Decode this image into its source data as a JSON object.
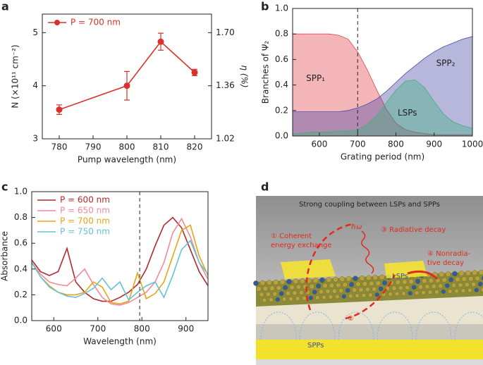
{
  "panel_labels": [
    "a",
    "b",
    "c",
    "d"
  ],
  "chart_data": [
    {
      "type": "line",
      "xlabel": "Pump wavelength (nm)",
      "ylabel": "N (×10¹¹ cm⁻²)",
      "y2label": "η (%)",
      "x": [
        780,
        800,
        810,
        820
      ],
      "series": [
        {
          "name": "P = 700 nm",
          "color": "#d9312b",
          "marker": true,
          "values": [
            3.55,
            4.0,
            4.83,
            4.25
          ],
          "errors": [
            0.09,
            0.27,
            0.16,
            0.06
          ]
        }
      ],
      "xlim": [
        775,
        825
      ],
      "xticks": [
        780,
        790,
        800,
        810,
        820
      ],
      "ylim": [
        3,
        5.35
      ],
      "yticks": [
        3,
        4,
        5
      ],
      "y2lim": [
        1.02,
        1.819
      ],
      "y2ticks": [
        1.02,
        1.36,
        {
          "value": 1.7,
          "label": "1.70"
        }
      ],
      "legend": "upper left"
    },
    {
      "type": "area",
      "xlabel": "Grating period (nm)",
      "ylabel": "Branches of Ψ₂",
      "x": [
        530,
        550,
        575,
        600,
        625,
        650,
        675,
        700,
        725,
        750,
        775,
        800,
        825,
        850,
        875,
        900,
        925,
        950,
        975,
        1000
      ],
      "series": [
        {
          "name": "SPP₁",
          "color": "#e0474c",
          "values": [
            0.8,
            0.8,
            0.8,
            0.8,
            0.8,
            0.79,
            0.76,
            0.66,
            0.52,
            0.36,
            0.21,
            0.1,
            0.05,
            0.03,
            0.02,
            0.01,
            0.01,
            0.01,
            0.01,
            0.01
          ]
        },
        {
          "name": "SPP₂",
          "color": "#4a4aa8",
          "values": [
            0.19,
            0.19,
            0.19,
            0.19,
            0.19,
            0.19,
            0.2,
            0.22,
            0.25,
            0.29,
            0.35,
            0.42,
            0.49,
            0.55,
            0.61,
            0.66,
            0.7,
            0.73,
            0.76,
            0.78
          ]
        },
        {
          "name": "LSPs",
          "color": "#3fb07e",
          "values": [
            0.02,
            0.02,
            0.03,
            0.03,
            0.03,
            0.04,
            0.04,
            0.05,
            0.09,
            0.16,
            0.26,
            0.36,
            0.43,
            0.44,
            0.38,
            0.27,
            0.17,
            0.11,
            0.08,
            0.06
          ]
        }
      ],
      "annotations": [
        {
          "text": "SPP₁",
          "x": 590,
          "y": 0.45
        },
        {
          "text": "SPP₂",
          "x": 930,
          "y": 0.57
        },
        {
          "text": "LSPs",
          "x": 830,
          "y": 0.18
        }
      ],
      "xlim": [
        530,
        1000
      ],
      "xticks": [
        600,
        700,
        800,
        900,
        1000
      ],
      "ylim": [
        0,
        1
      ],
      "yticks": [
        {
          "value": 0,
          "label": "0.0"
        },
        0.2,
        0.4,
        0.6,
        0.8,
        {
          "value": 1,
          "label": "1.0"
        }
      ],
      "vline": 700
    },
    {
      "type": "line",
      "xlabel": "Wavelength (nm)",
      "ylabel": "Absorbance",
      "x": [
        550,
        570,
        590,
        610,
        630,
        650,
        670,
        690,
        710,
        730,
        750,
        770,
        790,
        810,
        830,
        850,
        870,
        890,
        910,
        930,
        950
      ],
      "series": [
        {
          "name": "P = 600 nm",
          "color": "#b5272d",
          "values": [
            0.47,
            0.38,
            0.35,
            0.38,
            0.56,
            0.3,
            0.22,
            0.17,
            0.15,
            0.15,
            0.18,
            0.22,
            0.28,
            0.4,
            0.58,
            0.74,
            0.8,
            0.72,
            0.55,
            0.38,
            0.27
          ]
        },
        {
          "name": "P = 650 nm",
          "color": "#f08a9a",
          "values": [
            0.45,
            0.36,
            0.3,
            0.28,
            0.27,
            0.33,
            0.4,
            0.28,
            0.18,
            0.13,
            0.12,
            0.14,
            0.18,
            0.22,
            0.3,
            0.45,
            0.68,
            0.79,
            0.65,
            0.45,
            0.32
          ]
        },
        {
          "name": "P = 700 nm",
          "color": "#e8a317",
          "values": [
            0.45,
            0.34,
            0.27,
            0.22,
            0.2,
            0.2,
            0.22,
            0.3,
            0.26,
            0.14,
            0.13,
            0.15,
            0.37,
            0.17,
            0.21,
            0.3,
            0.5,
            0.7,
            0.74,
            0.5,
            0.35
          ]
        },
        {
          "name": "P = 750 nm",
          "color": "#62c3d6",
          "values": [
            0.45,
            0.34,
            0.26,
            0.22,
            0.19,
            0.18,
            0.21,
            0.25,
            0.33,
            0.24,
            0.3,
            0.16,
            0.22,
            0.27,
            0.3,
            0.18,
            0.35,
            0.55,
            0.62,
            0.45,
            0.36
          ]
        }
      ],
      "xlim": [
        550,
        950
      ],
      "xticks": [
        600,
        700,
        800,
        900
      ],
      "ylim": [
        0,
        1
      ],
      "yticks": [
        {
          "value": 0,
          "label": "0.0"
        },
        0.2,
        0.4,
        0.6,
        0.8,
        {
          "value": 1,
          "label": "1.0"
        }
      ],
      "vline": 795,
      "legend": "upper left"
    }
  ],
  "diagram": {
    "title": "Strong coupling between LSPs and SPPs",
    "step1": [
      "① Coherent",
      "energy exchange"
    ],
    "photon": "ħω",
    "step3": "③ Radiative decay",
    "step4": [
      "④ Nonradia-",
      "tive decay"
    ],
    "step2": "②",
    "lsps": "LSPs",
    "spps": "SPPs"
  }
}
